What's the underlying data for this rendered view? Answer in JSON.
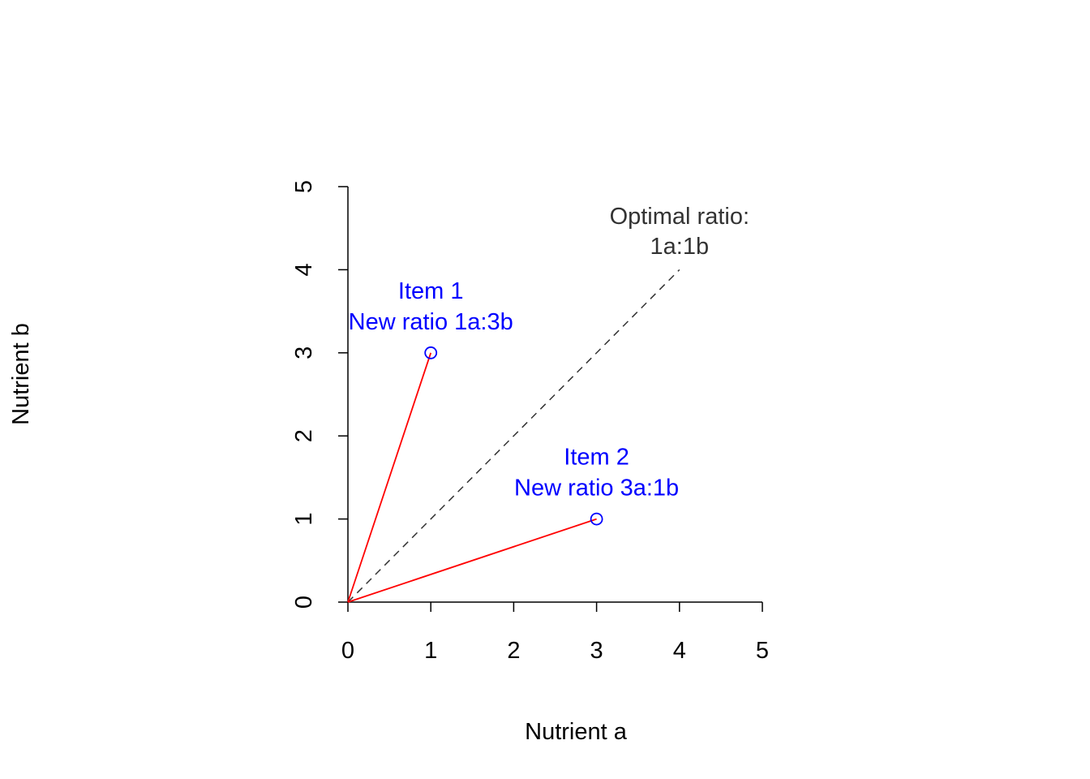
{
  "chart_data": {
    "type": "scatter",
    "xlabel": "Nutrient a",
    "ylabel": "Nutrient b",
    "xlim": [
      0,
      5
    ],
    "ylim": [
      0,
      5
    ],
    "x_ticks": [
      "0",
      "1",
      "2",
      "3",
      "4",
      "5"
    ],
    "y_ticks": [
      "0",
      "1",
      "2",
      "3",
      "4",
      "5"
    ],
    "grid": false,
    "legend": "none",
    "points": [
      {
        "x": 1,
        "y": 3,
        "label_line1": "Item 1",
        "label_line2": "New ratio 1a:3b"
      },
      {
        "x": 3,
        "y": 1,
        "label_line1": "Item 2",
        "label_line2": "New ratio 3a:1b"
      }
    ],
    "rays": [
      {
        "from": [
          0,
          0
        ],
        "to": [
          1,
          3
        ]
      },
      {
        "from": [
          0,
          0
        ],
        "to": [
          3,
          1
        ]
      }
    ],
    "reference_line": {
      "from": [
        0,
        0
      ],
      "to": [
        4,
        4
      ],
      "style": "dashed",
      "label_line1": "Optimal ratio:",
      "label_line2": "1a:1b"
    },
    "colors": {
      "points": "#0000ff",
      "point_labels": "#0000ff",
      "rays": "#ff0000",
      "reference": "#333333",
      "axes": "#000000"
    }
  }
}
